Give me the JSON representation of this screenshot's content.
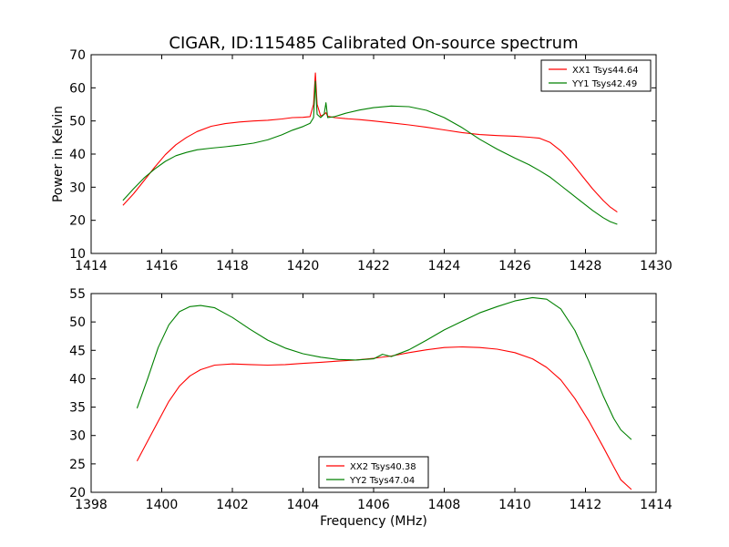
{
  "title": "CIGAR, ID:115485 Calibrated On-source spectrum",
  "chart_data": [
    {
      "type": "line",
      "xlabel": "",
      "ylabel": "Power in Kelvin",
      "xlim": [
        1414,
        1430
      ],
      "ylim": [
        10,
        70
      ],
      "xticks": [
        1414,
        1416,
        1418,
        1420,
        1422,
        1424,
        1426,
        1428,
        1430
      ],
      "yticks": [
        10,
        20,
        30,
        40,
        50,
        60,
        70
      ],
      "grid": false,
      "legend_position": "top-right",
      "series": [
        {
          "name": "XX1 Tsys44.64",
          "color": "#ff0000",
          "x": [
            1414.9,
            1415.2,
            1415.5,
            1415.8,
            1416.1,
            1416.4,
            1416.7,
            1417.0,
            1417.4,
            1417.8,
            1418.2,
            1418.6,
            1419.0,
            1419.4,
            1419.7,
            1420.0,
            1420.2,
            1420.3,
            1420.35,
            1420.4,
            1420.5,
            1420.6,
            1420.65,
            1420.7,
            1420.9,
            1421.2,
            1421.6,
            1422.0,
            1422.5,
            1423.0,
            1423.5,
            1424.0,
            1424.5,
            1425.0,
            1425.5,
            1426.0,
            1426.4,
            1426.7,
            1427.0,
            1427.3,
            1427.6,
            1427.9,
            1428.2,
            1428.5,
            1428.7,
            1428.9
          ],
          "y": [
            24.5,
            28.0,
            32.0,
            36.0,
            39.8,
            42.8,
            45.0,
            46.8,
            48.4,
            49.2,
            49.7,
            50.0,
            50.2,
            50.6,
            51.0,
            51.1,
            51.3,
            55.0,
            64.5,
            55.0,
            51.5,
            52.0,
            52.5,
            51.4,
            51.0,
            50.7,
            50.4,
            50.0,
            49.4,
            48.8,
            48.1,
            47.3,
            46.5,
            45.9,
            45.6,
            45.4,
            45.1,
            44.8,
            43.5,
            41.0,
            37.5,
            33.5,
            29.5,
            26.0,
            24.0,
            22.5
          ]
        },
        {
          "name": "YY1 Tsys42.49",
          "color": "#008000",
          "x": [
            1414.9,
            1415.2,
            1415.5,
            1415.8,
            1416.1,
            1416.4,
            1416.7,
            1417.0,
            1417.4,
            1417.8,
            1418.2,
            1418.6,
            1419.0,
            1419.4,
            1419.7,
            1420.0,
            1420.2,
            1420.3,
            1420.35,
            1420.4,
            1420.5,
            1420.6,
            1420.65,
            1420.7,
            1420.9,
            1421.2,
            1421.6,
            1422.0,
            1422.5,
            1423.0,
            1423.5,
            1424.0,
            1424.5,
            1425.0,
            1425.5,
            1426.0,
            1426.4,
            1426.7,
            1427.0,
            1427.3,
            1427.6,
            1427.9,
            1428.2,
            1428.5,
            1428.7,
            1428.9
          ],
          "y": [
            26.0,
            29.5,
            32.8,
            35.5,
            37.8,
            39.5,
            40.5,
            41.3,
            41.8,
            42.2,
            42.7,
            43.3,
            44.3,
            45.8,
            47.2,
            48.3,
            49.3,
            51.0,
            62.0,
            52.0,
            51.0,
            52.0,
            55.5,
            51.0,
            51.3,
            52.3,
            53.3,
            54.0,
            54.5,
            54.3,
            53.2,
            51.0,
            48.0,
            44.5,
            41.5,
            38.8,
            36.8,
            35.0,
            33.0,
            30.5,
            28.0,
            25.5,
            23.0,
            20.8,
            19.6,
            18.8
          ]
        }
      ]
    },
    {
      "type": "line",
      "xlabel": "Frequency (MHz)",
      "ylabel": "",
      "xlim": [
        1398,
        1414
      ],
      "ylim": [
        20,
        55
      ],
      "xticks": [
        1398,
        1400,
        1402,
        1404,
        1406,
        1408,
        1410,
        1412,
        1414
      ],
      "yticks": [
        20,
        25,
        30,
        35,
        40,
        45,
        50,
        55
      ],
      "grid": false,
      "legend_position": "bottom-center",
      "series": [
        {
          "name": "XX2 Tsys40.38",
          "color": "#ff0000",
          "x": [
            1399.3,
            1399.6,
            1399.9,
            1400.2,
            1400.5,
            1400.8,
            1401.1,
            1401.5,
            1402.0,
            1402.5,
            1403.0,
            1403.5,
            1404.0,
            1404.5,
            1405.0,
            1405.5,
            1406.0,
            1406.5,
            1407.0,
            1407.5,
            1408.0,
            1408.5,
            1409.0,
            1409.5,
            1410.0,
            1410.5,
            1410.9,
            1411.3,
            1411.7,
            1412.1,
            1412.5,
            1412.8,
            1413.0,
            1413.3
          ],
          "y": [
            25.5,
            29.0,
            32.5,
            36.0,
            38.7,
            40.5,
            41.6,
            42.4,
            42.6,
            42.5,
            42.4,
            42.5,
            42.7,
            42.9,
            43.1,
            43.3,
            43.6,
            44.0,
            44.6,
            45.1,
            45.5,
            45.6,
            45.5,
            45.2,
            44.6,
            43.5,
            42.0,
            39.8,
            36.5,
            32.5,
            28.0,
            24.5,
            22.2,
            20.5
          ]
        },
        {
          "name": "YY2 Tsys47.04",
          "color": "#008000",
          "x": [
            1399.3,
            1399.6,
            1399.9,
            1400.2,
            1400.5,
            1400.8,
            1401.1,
            1401.5,
            1402.0,
            1402.5,
            1403.0,
            1403.5,
            1404.0,
            1404.5,
            1405.0,
            1405.5,
            1406.0,
            1406.25,
            1406.5,
            1407.0,
            1407.5,
            1408.0,
            1408.5,
            1409.0,
            1409.5,
            1410.0,
            1410.5,
            1410.9,
            1411.3,
            1411.7,
            1412.1,
            1412.5,
            1412.8,
            1413.0,
            1413.3
          ],
          "y": [
            34.8,
            40.0,
            45.5,
            49.5,
            51.8,
            52.7,
            52.9,
            52.5,
            50.8,
            48.7,
            46.8,
            45.4,
            44.4,
            43.8,
            43.4,
            43.3,
            43.5,
            44.3,
            43.9,
            45.1,
            46.8,
            48.6,
            50.1,
            51.6,
            52.7,
            53.7,
            54.3,
            54.0,
            52.3,
            48.5,
            43.0,
            37.0,
            33.0,
            31.0,
            29.3
          ]
        }
      ]
    }
  ]
}
